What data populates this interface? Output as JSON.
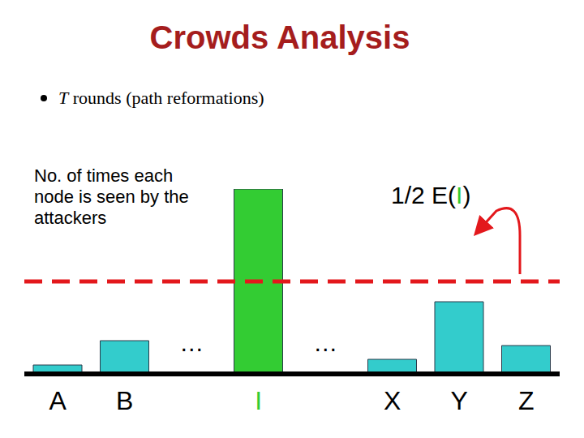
{
  "chart_data": {
    "type": "bar",
    "title": "Crowds Analysis",
    "subtitle": "T rounds (path reformations)",
    "y_label": "No. of times each node is seen by the attackers",
    "categories": [
      "A",
      "B",
      null,
      "I",
      null,
      "X",
      "Y",
      "Z"
    ],
    "values": [
      11,
      41,
      null,
      228,
      null,
      18,
      89,
      35
    ],
    "color": "#33cccc",
    "colors": [
      "#33cccc",
      "#33cccc",
      "#33cccc",
      "#33cc33",
      "#33cccc",
      "#33cccc",
      "#33cccc",
      "#33cccc"
    ],
    "gap_label": "…",
    "threshold": 114,
    "threshold_label": "1/2 E(I)",
    "ylim": [
      0,
      228
    ],
    "yticks": [],
    "tick_labels": "x"
  }
}
